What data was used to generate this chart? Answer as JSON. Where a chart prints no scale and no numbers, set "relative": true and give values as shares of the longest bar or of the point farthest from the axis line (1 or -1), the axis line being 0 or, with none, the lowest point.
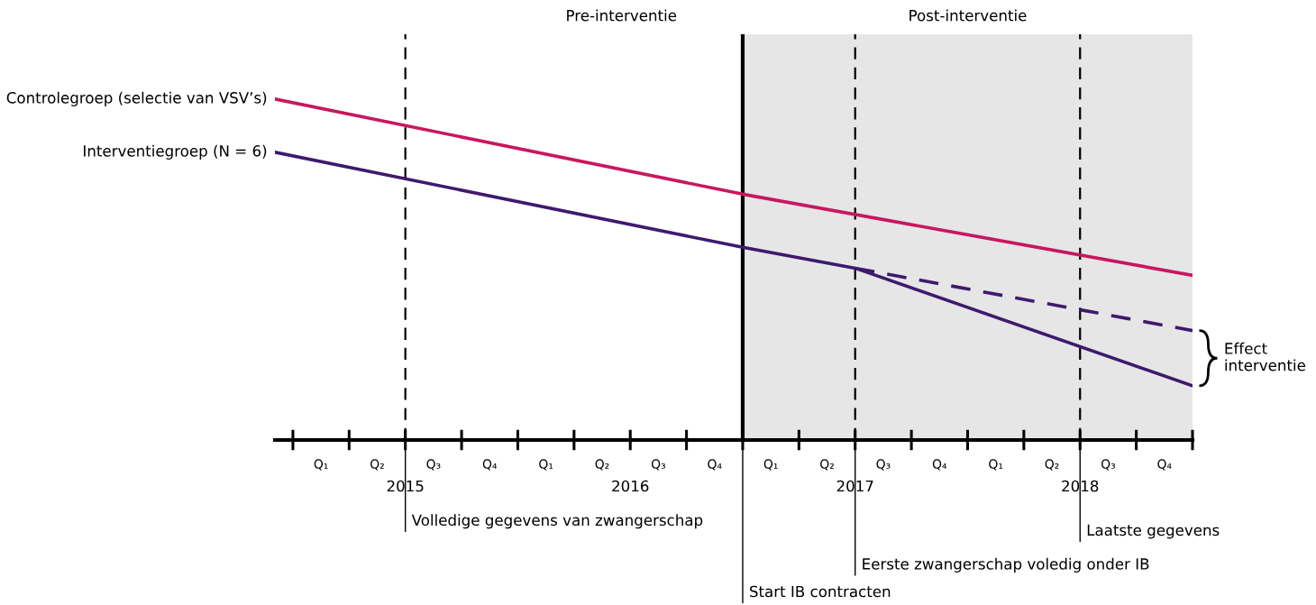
{
  "chart_data": {
    "type": "line",
    "relative": true,
    "grid": false,
    "marker": "none",
    "xlim": [
      2014.42,
      2018.5
    ],
    "xticks": [
      2015,
      2016,
      2017,
      2018
    ],
    "series": [
      {
        "name": "Controlegroep (selectie van VSV’s)",
        "color": "#c8175f",
        "line_style": "solid",
        "x": [
          2014.42,
          2016.5,
          2018.5
        ],
        "values": [
          1.0,
          0.721,
          0.483
        ]
      },
      {
        "name": "Interventiegroep (N = 6)",
        "color": "#3d1a6e",
        "line_style": "solid",
        "x": [
          2014.42,
          2016.5,
          2017,
          2018.5
        ],
        "values": [
          0.844,
          0.565,
          0.504,
          0.159
        ]
      },
      {
        "color": "#3d1a6e",
        "line_style": "dashed",
        "x": [
          2017,
          2018.5
        ],
        "values": [
          0.504,
          0.321
        ]
      }
    ],
    "bands": [
      {
        "axis": "x",
        "from": 2016.5,
        "to": 2018.5,
        "label": "Post-interventie",
        "color": "#e6e6e6"
      }
    ],
    "ref_lines": [
      {
        "axis": "x",
        "value": 2015,
        "label": "Volledige gegevens van zwangerschap",
        "line_style": "dashed"
      },
      {
        "axis": "x",
        "value": 2016.5,
        "label": "Start IB contracten",
        "line_style": "solid"
      },
      {
        "axis": "x",
        "value": 2017,
        "label": "Eerste zwangerschap voledig onder IB",
        "line_style": "dashed"
      },
      {
        "axis": "x",
        "value": 2018,
        "label": "Laatste gegevens",
        "line_style": "dashed"
      }
    ],
    "annotations": [
      "Q₁",
      "Q₂",
      "Q₃",
      "Q₄",
      "Q₁",
      "Q₂",
      "Q₃",
      "Q₄",
      "Q₁",
      "Q₂",
      "Q₃",
      "Q₄",
      "Q₁",
      "Q₂",
      "Q₃",
      "Q₄",
      "Pre-interventie",
      "Effect\ninterventie"
    ]
  }
}
